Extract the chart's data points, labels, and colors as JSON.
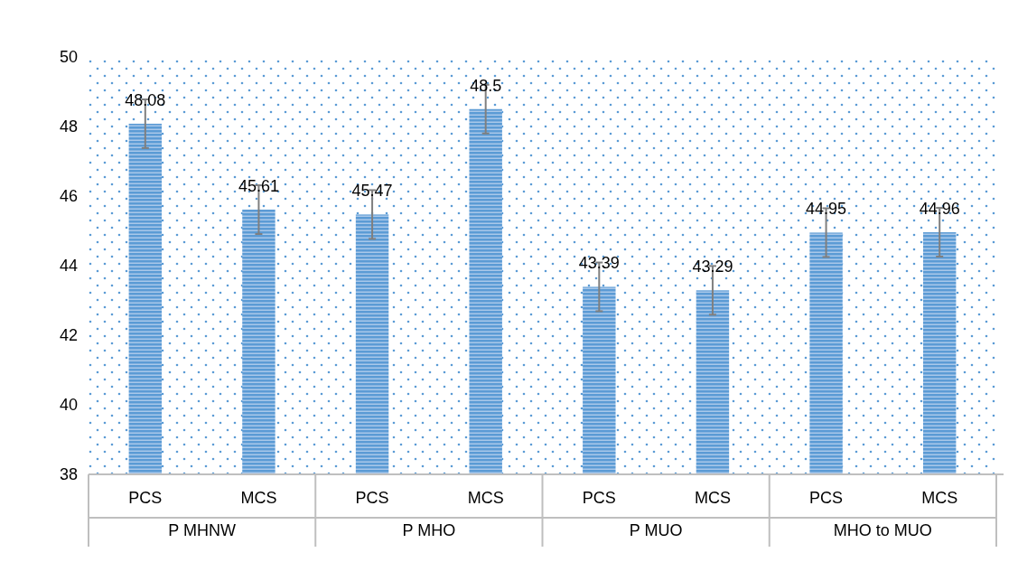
{
  "chart_data": {
    "type": "bar",
    "categories": [
      "PCS",
      "MCS",
      "PCS",
      "MCS",
      "PCS",
      "MCS",
      "PCS",
      "MCS"
    ],
    "values": [
      48.08,
      45.61,
      45.47,
      48.5,
      43.39,
      43.29,
      44.95,
      44.96
    ],
    "errors": [
      0.7,
      0.7,
      0.7,
      0.7,
      0.7,
      0.7,
      0.7,
      0.7
    ],
    "color": "#5b9bd5",
    "ylim": [
      38,
      50
    ],
    "yticks": [
      38,
      40,
      42,
      44,
      46,
      48,
      50
    ],
    "data_labels": true,
    "annotations": [
      "P MHNW",
      "P MHO",
      "P MUO",
      "MHO to MUO"
    ]
  }
}
